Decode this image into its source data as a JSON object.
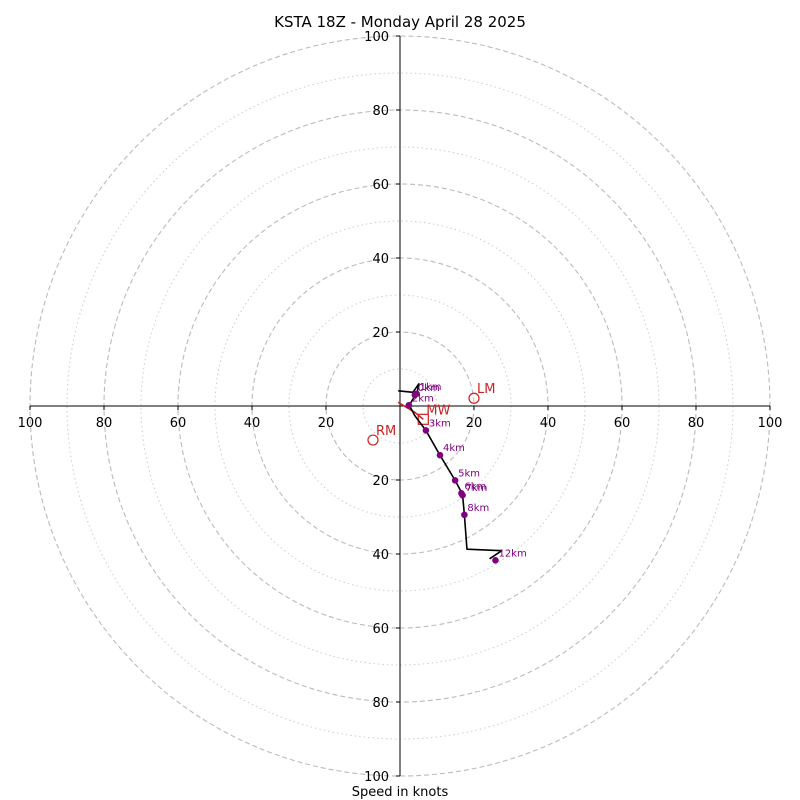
{
  "chart_data": {
    "type": "scatter",
    "title": "KSTA 18Z - Monday April 28 2025",
    "xlabel": "Speed in knots",
    "axis_range": [
      -100,
      100
    ],
    "tick_labels": {
      "x": [
        "100",
        "80",
        "60",
        "40",
        "20",
        "20",
        "40",
        "60",
        "80",
        "100"
      ],
      "y_top": [
        "100",
        "80",
        "60",
        "40",
        "20"
      ],
      "y_bottom": [
        "20",
        "40",
        "60",
        "80",
        "100"
      ]
    },
    "rings": {
      "major": [
        20,
        40,
        60,
        80,
        100
      ],
      "minor": [
        10,
        30,
        50,
        70,
        90
      ]
    },
    "colors": {
      "hodograph": "#000000",
      "levels": "#800080",
      "motion": "#cc2222",
      "ring": "#bbbbbb"
    },
    "hodograph_path": [
      {
        "u": -0.5,
        "v": 4.1
      },
      {
        "u": 3.5,
        "v": 3.7
      },
      {
        "u": 5.1,
        "v": 6.0
      },
      {
        "u": 4.5,
        "v": 3.0
      },
      {
        "u": 4.0,
        "v": 2.7
      },
      {
        "u": 2.5,
        "v": 0.2
      },
      {
        "u": 4.0,
        "v": -2.6
      },
      {
        "u": 7.0,
        "v": -6.6
      },
      {
        "u": 10.8,
        "v": -13.3
      },
      {
        "u": 14.9,
        "v": -20.1
      },
      {
        "u": 16.9,
        "v": -23.9
      },
      {
        "u": 17.4,
        "v": -29.4
      },
      {
        "u": 18.1,
        "v": -38.7
      },
      {
        "u": 27.5,
        "v": -39.1
      },
      {
        "u": 24.2,
        "v": -41.3
      }
    ],
    "levels": [
      {
        "label": "0km",
        "u": 4.0,
        "v": 3.0
      },
      {
        "label": "1km",
        "u": 4.5,
        "v": 3.3
      },
      {
        "label": "2km",
        "u": 2.4,
        "v": 0.2
      },
      {
        "label": "3km",
        "u": 7.0,
        "v": -6.6
      },
      {
        "label": "4km",
        "u": 10.8,
        "v": -13.3
      },
      {
        "label": "5km",
        "u": 14.9,
        "v": -20.1
      },
      {
        "label": "6km",
        "u": 16.6,
        "v": -23.6
      },
      {
        "label": "7km",
        "u": 16.9,
        "v": -24.1
      },
      {
        "label": "8km",
        "u": 17.4,
        "v": -29.4
      },
      {
        "label": "12km",
        "u": 25.8,
        "v": -41.7
      }
    ],
    "storm_motion": [
      {
        "label": "LM",
        "u": 20.0,
        "v": 2.1,
        "marker": "circle"
      },
      {
        "label": "MW",
        "u": 6.3,
        "v": -3.6,
        "marker": "square"
      },
      {
        "label": "RM",
        "u": -7.3,
        "v": -9.2,
        "marker": "circle"
      }
    ],
    "motion_line": [
      {
        "u": -0.5,
        "v": 1.0
      },
      {
        "u": 4.0,
        "v": -1.7
      },
      {
        "u": 6.3,
        "v": -3.6
      }
    ]
  }
}
